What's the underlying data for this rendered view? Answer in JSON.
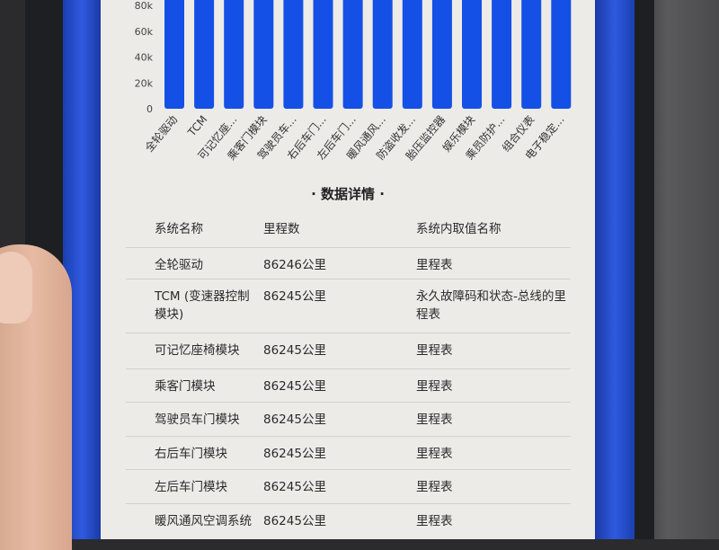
{
  "chart_data": {
    "type": "bar",
    "categories": [
      "全轮驱动",
      "TCM",
      "可记忆座...",
      "乘客门模块",
      "驾驶员车...",
      "右后车门...",
      "左后车门...",
      "暖风通风...",
      "防盗收发...",
      "胎压监控器",
      "娱乐模块",
      "乘员防护...",
      "组合仪表",
      "电子稳定..."
    ],
    "values": [
      86246,
      86245,
      86245,
      86245,
      86245,
      86245,
      86245,
      86245,
      86245,
      86245,
      86245,
      86245,
      86245,
      86245
    ],
    "yticks": [
      "0",
      "20k",
      "40k",
      "60k",
      "80k"
    ],
    "ylim": [
      0,
      80000
    ],
    "bar_color": "#1550e6",
    "grid": false
  },
  "table": {
    "title": "· 数据详情 ·",
    "headers": [
      "系统名称",
      "里程数",
      "系统内取值名称"
    ],
    "rows": [
      [
        "全轮驱动",
        "86246公里",
        "里程表"
      ],
      [
        "TCM (变速器控制模块)",
        "86245公里",
        "永久故障码和状态-总线的里程表"
      ],
      [
        "可记忆座椅模块",
        "86245公里",
        "里程表"
      ],
      [
        "乘客门模块",
        "86245公里",
        "里程表"
      ],
      [
        "驾驶员车门模块",
        "86245公里",
        "里程表"
      ],
      [
        "右后车门模块",
        "86245公里",
        "里程表"
      ],
      [
        "左后车门模块",
        "86245公里",
        "里程表"
      ],
      [
        "暖风通风空调系统",
        "86245公里",
        "里程表"
      ]
    ]
  }
}
